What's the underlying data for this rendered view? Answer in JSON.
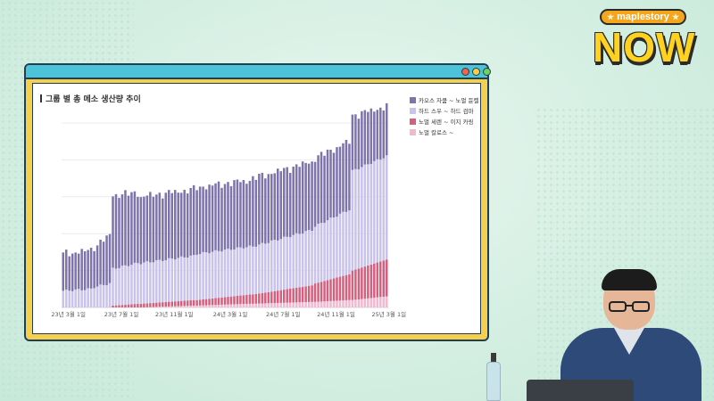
{
  "brand": {
    "pill_text": "maplestory",
    "title": "NOW"
  },
  "chart_data": {
    "type": "bar",
    "stacked": true,
    "title": "그룹 별 총 메소 생산량 추이",
    "xlabel": "",
    "ylabel": "",
    "legend_position": "top-right",
    "grid": true,
    "x_tick_labels": [
      "23년 3월 1일",
      "23년 7월 1일",
      "23년 11월 1일",
      "24년 3월 1일",
      "24년 7월 1일",
      "24년 11월 1일",
      "25년 3월 1일"
    ],
    "x_tick_indices": [
      0,
      17,
      34,
      52,
      69,
      86,
      103
    ],
    "ylim": [
      0,
      100
    ],
    "bar_count": 105,
    "series": [
      {
        "name": "노멀 칼로스 ~",
        "color": "#f2b8cf"
      },
      {
        "name": "노멀 세렌 ~ 이지 카링",
        "color": "#d2607e"
      },
      {
        "name": "하드 스우 ~ 하드 검마",
        "color": "#c9c3ec"
      },
      {
        "name": "카오스 자쿰 ~ 노멀 듄켈",
        "color": "#7e74ab"
      }
    ],
    "segments": [
      {
        "from": 0,
        "to": 9,
        "values_start": [
          0,
          0,
          9,
          20
        ],
        "values_end": [
          0,
          0,
          10,
          21
        ]
      },
      {
        "from": 10,
        "to": 15,
        "values_start": [
          0,
          0,
          11,
          22
        ],
        "values_end": [
          0,
          0,
          13,
          26
        ]
      },
      {
        "from": 16,
        "to": 24,
        "values_start": [
          0,
          1,
          20,
          40
        ],
        "values_end": [
          0,
          2,
          22,
          38
        ]
      },
      {
        "from": 25,
        "to": 42,
        "values_start": [
          0,
          2,
          22,
          36
        ],
        "values_end": [
          1,
          3,
          24,
          36
        ]
      },
      {
        "from": 43,
        "to": 60,
        "values_start": [
          1,
          3,
          25,
          36
        ],
        "values_end": [
          2,
          5,
          26,
          36
        ]
      },
      {
        "from": 61,
        "to": 80,
        "values_start": [
          2,
          5,
          26,
          37
        ],
        "values_end": [
          3,
          9,
          30,
          37
        ]
      },
      {
        "from": 81,
        "to": 92,
        "values_start": [
          3,
          10,
          31,
          37
        ],
        "values_end": [
          4,
          14,
          35,
          37
        ]
      },
      {
        "from": 93,
        "to": 104,
        "values_start": [
          4,
          16,
          54,
          30
        ],
        "values_end": [
          6,
          20,
          56,
          27
        ]
      }
    ]
  }
}
